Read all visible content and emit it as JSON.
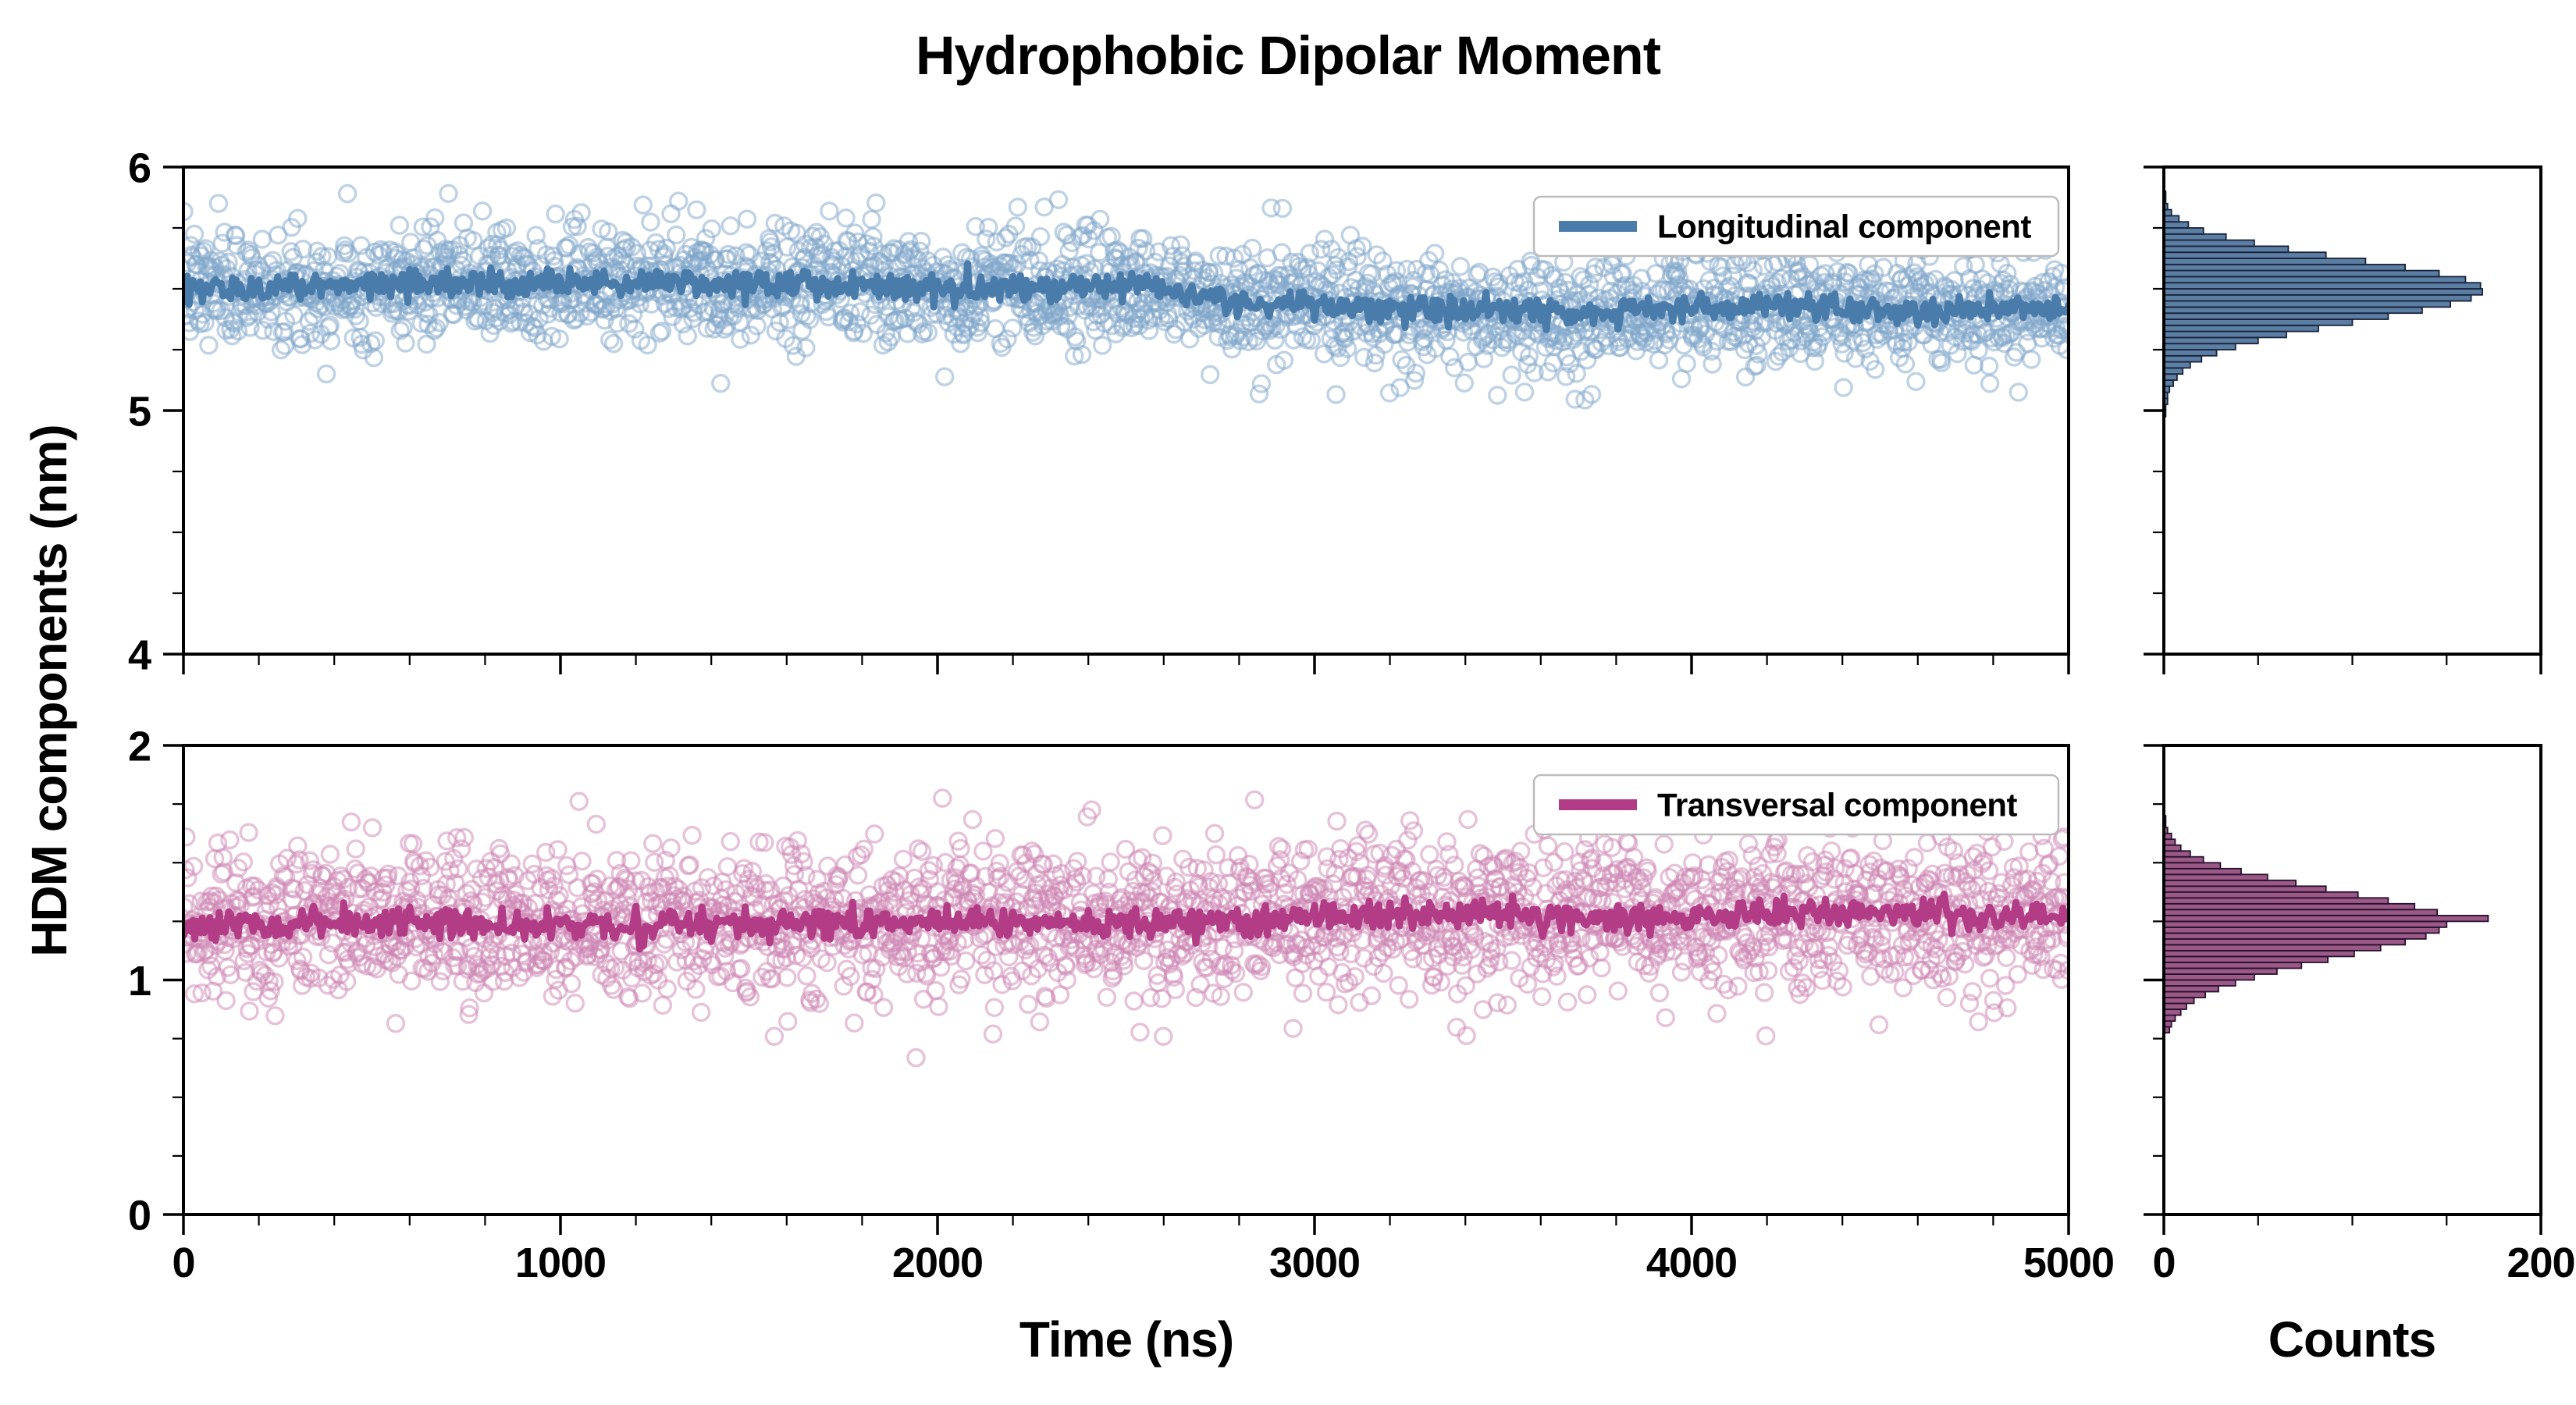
{
  "chart_data": {
    "type": "scatter",
    "title": "Hydrophobic Dipolar Moment",
    "xlabel": "Time (ns)",
    "ylabel": "HDM components (nm)",
    "counts_label": "Counts",
    "x_range": [
      0,
      5000
    ],
    "x_ticks": [
      0,
      1000,
      2000,
      3000,
      4000,
      5000
    ],
    "x_minor_step": 200,
    "counts_range": [
      0,
      200
    ],
    "counts_ticks": [
      0,
      200
    ],
    "counts_minor": [
      50,
      100,
      150
    ],
    "legend_position": "upper right",
    "grid": false,
    "panels": [
      {
        "type": "scatter",
        "name": "Longitudinal component",
        "y_range": [
          4,
          6
        ],
        "y_ticks": [
          4,
          5,
          6
        ],
        "y_minor_step": 0.25,
        "colors": {
          "line": "#4a7cab",
          "marker": "#7fa6c9",
          "hist_fill": "#53779e",
          "hist_edge": "#17223b"
        },
        "n_points": 2500,
        "noise_sd": 0.115,
        "line_noise_sd": 0.028,
        "seed": 7,
        "trend": [
          [
            0,
            5.5
          ],
          [
            600,
            5.52
          ],
          [
            1300,
            5.53
          ],
          [
            2100,
            5.5
          ],
          [
            2500,
            5.52
          ],
          [
            2800,
            5.45
          ],
          [
            3200,
            5.42
          ],
          [
            3700,
            5.4
          ],
          [
            4200,
            5.43
          ],
          [
            4600,
            5.4
          ],
          [
            5000,
            5.42
          ]
        ],
        "histogram": {
          "bin_start": 4.95,
          "bin_width": 0.025,
          "counts": [
            0,
            1,
            1,
            2,
            2,
            3,
            5,
            7,
            10,
            14,
            20,
            28,
            38,
            50,
            65,
            82,
            100,
            119,
            137,
            152,
            163,
            169,
            168,
            160,
            146,
            128,
            107,
            86,
            66,
            48,
            33,
            21,
            13,
            8,
            4,
            2,
            1,
            1,
            0,
            0
          ]
        }
      },
      {
        "type": "scatter",
        "name": "Transversal component",
        "y_range": [
          0,
          2
        ],
        "y_ticks": [
          0,
          1,
          2
        ],
        "y_minor_step": 0.25,
        "colors": {
          "line": "#b23c86",
          "marker": "#cd86b4",
          "hist_fill": "#96507e",
          "hist_edge": "#260f31"
        },
        "n_points": 2500,
        "noise_sd": 0.165,
        "line_noise_sd": 0.03,
        "seed": 99,
        "trend": [
          [
            0,
            1.22
          ],
          [
            500,
            1.25
          ],
          [
            1200,
            1.23
          ],
          [
            2000,
            1.25
          ],
          [
            2600,
            1.24
          ],
          [
            3200,
            1.28
          ],
          [
            3800,
            1.27
          ],
          [
            4400,
            1.29
          ],
          [
            5000,
            1.27
          ]
        ],
        "histogram": {
          "bin_start": 0.775,
          "bin_width": 0.025,
          "counts": [
            3,
            4,
            6,
            9,
            12,
            16,
            22,
            29,
            38,
            48,
            60,
            73,
            87,
            101,
            115,
            128,
            139,
            146,
            150,
            172,
            145,
            133,
            119,
            103,
            86,
            70,
            55,
            41,
            30,
            21,
            14,
            9,
            6,
            4,
            2,
            1,
            1,
            0,
            0,
            0
          ]
        }
      }
    ]
  }
}
